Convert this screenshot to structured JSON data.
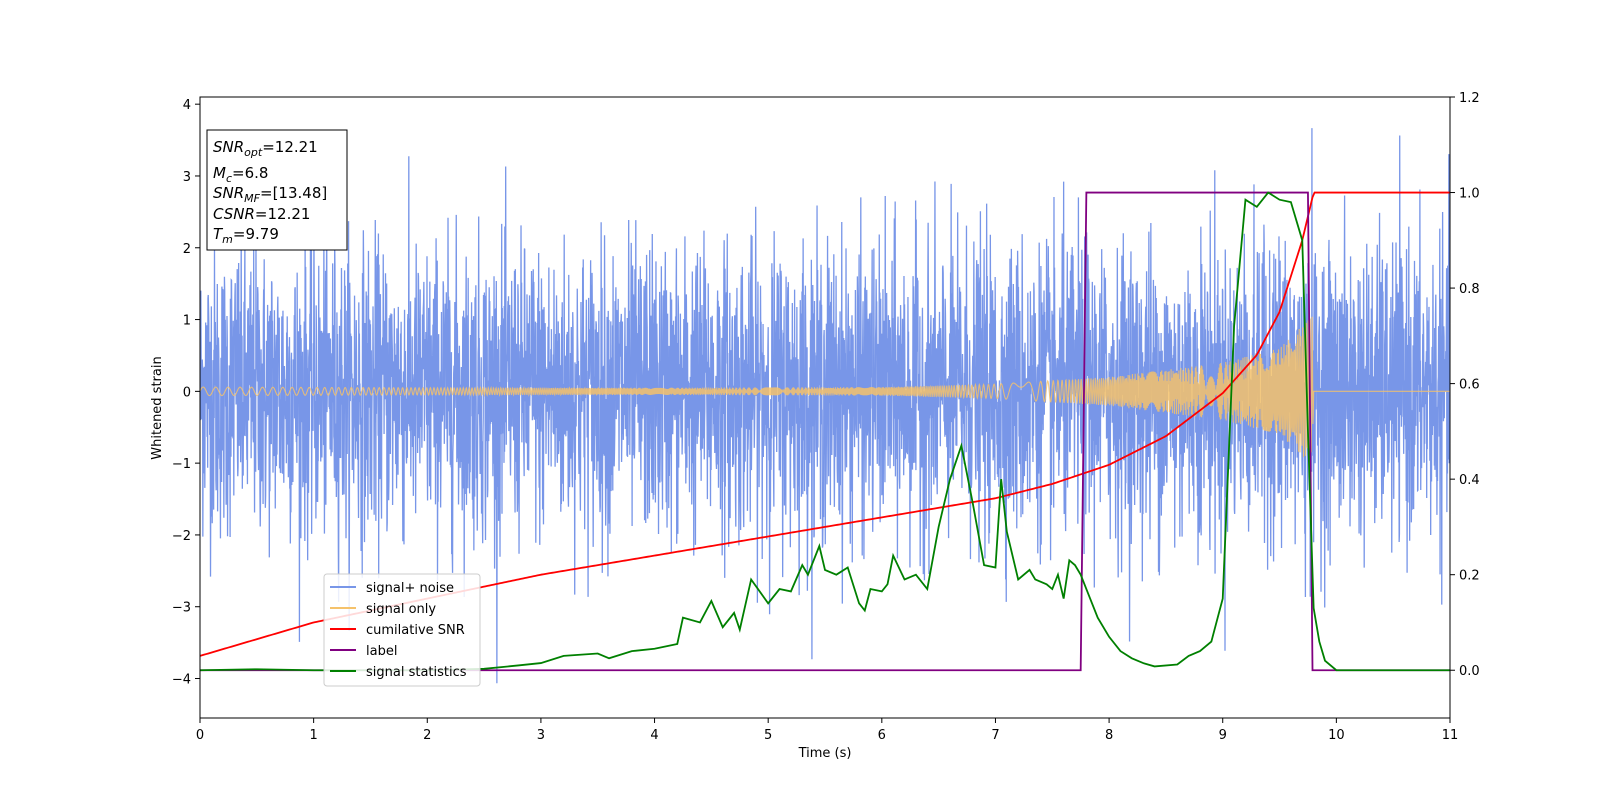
{
  "chart_data": {
    "type": "line",
    "xlabel": "Time (s)",
    "ylabel": "Whitened strain",
    "xlim": [
      0,
      11
    ],
    "ylim_left": [
      -4.55,
      4.1
    ],
    "ylim_right": [
      -0.1,
      1.2
    ],
    "x_ticks": [
      0,
      1,
      2,
      3,
      4,
      5,
      6,
      7,
      8,
      9,
      10,
      11
    ],
    "y_ticks_left": [
      -4,
      -3,
      -2,
      -1,
      0,
      1,
      2,
      3,
      4
    ],
    "y_ticks_right": [
      0.0,
      0.2,
      0.4,
      0.6,
      0.8,
      1.0,
      1.2
    ],
    "grid": false,
    "legend_position": "lower-left",
    "info_box": {
      "position": "top-left",
      "lines": [
        {
          "sym": "SNR",
          "sub": "opt",
          "value": "=12.21"
        },
        {
          "sym": "M",
          "sub": "c",
          "value": "=6.8"
        },
        {
          "sym": "SNR",
          "sub": "MF",
          "value": "=[13.48]"
        },
        {
          "sym": "CSNR",
          "sub": "",
          "value": "=12.21"
        },
        {
          "sym": "T",
          "sub": "m",
          "value": "=9.79"
        }
      ]
    },
    "series": [
      {
        "name": "signal+ noise",
        "axis": "left",
        "color": "#7896e8",
        "description_values": {
          "mean": 0,
          "std": 1.0,
          "min": -4.2,
          "max": 3.7
        }
      },
      {
        "name": "signal only",
        "axis": "left",
        "color": "#f5c26b",
        "envelope": {
          "x": [
            0,
            2,
            4,
            6,
            7,
            8,
            9,
            9.5,
            9.79,
            9.8,
            11
          ],
          "amp": [
            0.06,
            0.05,
            0.05,
            0.06,
            0.1,
            0.2,
            0.4,
            0.6,
            1.05,
            0.0,
            0.0
          ]
        }
      },
      {
        "name": "cumilative SNR",
        "axis": "right",
        "color": "#ff0000",
        "x": [
          0,
          1,
          2,
          3,
          4,
          5,
          6,
          7,
          7.5,
          8,
          8.5,
          9,
          9.3,
          9.5,
          9.7,
          9.79,
          9.8,
          11
        ],
        "y": [
          0.03,
          0.1,
          0.15,
          0.2,
          0.24,
          0.28,
          0.32,
          0.36,
          0.39,
          0.43,
          0.49,
          0.58,
          0.66,
          0.75,
          0.9,
          0.99,
          1.0,
          1.0
        ]
      },
      {
        "name": "label",
        "axis": "right",
        "color": "#800080",
        "x": [
          0,
          7.75,
          7.8,
          9.75,
          9.79,
          11
        ],
        "y": [
          0,
          0,
          1,
          1,
          0,
          0
        ]
      },
      {
        "name": "signal statistics",
        "axis": "right",
        "color": "#008000",
        "x": [
          0,
          0.5,
          1,
          2,
          2.5,
          2.8,
          3,
          3.2,
          3.5,
          3.6,
          3.8,
          4,
          4.2,
          4.25,
          4.4,
          4.5,
          4.6,
          4.7,
          4.75,
          4.85,
          5,
          5.1,
          5.2,
          5.3,
          5.35,
          5.45,
          5.5,
          5.6,
          5.7,
          5.8,
          5.85,
          5.9,
          6.0,
          6.05,
          6.1,
          6.2,
          6.3,
          6.4,
          6.5,
          6.6,
          6.7,
          6.8,
          6.9,
          7.0,
          7.05,
          7.1,
          7.2,
          7.3,
          7.35,
          7.45,
          7.5,
          7.55,
          7.6,
          7.65,
          7.7,
          7.75,
          7.8,
          7.9,
          8.0,
          8.1,
          8.2,
          8.3,
          8.4,
          8.6,
          8.7,
          8.8,
          8.9,
          9.0,
          9.1,
          9.2,
          9.3,
          9.4,
          9.5,
          9.6,
          9.7,
          9.75,
          9.8,
          9.85,
          9.9,
          10,
          11
        ],
        "y": [
          0,
          0.002,
          0,
          0,
          0.003,
          0.01,
          0.015,
          0.03,
          0.035,
          0.025,
          0.04,
          0.045,
          0.055,
          0.11,
          0.1,
          0.145,
          0.09,
          0.12,
          0.085,
          0.19,
          0.14,
          0.17,
          0.165,
          0.22,
          0.2,
          0.26,
          0.21,
          0.2,
          0.215,
          0.14,
          0.125,
          0.17,
          0.165,
          0.18,
          0.24,
          0.19,
          0.2,
          0.17,
          0.3,
          0.4,
          0.47,
          0.35,
          0.22,
          0.215,
          0.4,
          0.29,
          0.19,
          0.21,
          0.19,
          0.18,
          0.17,
          0.2,
          0.15,
          0.23,
          0.22,
          0.2,
          0.17,
          0.11,
          0.07,
          0.04,
          0.025,
          0.015,
          0.008,
          0.012,
          0.03,
          0.04,
          0.06,
          0.15,
          0.72,
          0.985,
          0.97,
          1.0,
          0.985,
          0.98,
          0.9,
          0.5,
          0.13,
          0.06,
          0.02,
          0.0,
          0.0
        ]
      }
    ]
  }
}
